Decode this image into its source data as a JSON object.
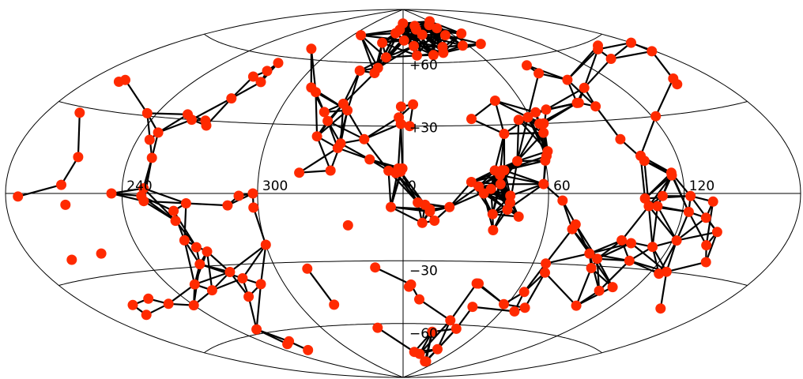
{
  "chart_data": {
    "type": "scatter",
    "projection": "aitoff-hammer",
    "title": "",
    "xlabel": "",
    "ylabel": "",
    "grid": true,
    "longitude_tick_labels": [
      {
        "value": 240,
        "text": "240"
      },
      {
        "value": 300,
        "text": "300"
      },
      {
        "value": 0,
        "text": "0"
      },
      {
        "value": 60,
        "text": "60"
      },
      {
        "value": 120,
        "text": "120"
      }
    ],
    "latitude_tick_labels": [
      {
        "value": 60,
        "text": "+60"
      },
      {
        "value": 30,
        "text": "+30"
      },
      {
        "value": -30,
        "text": "−30"
      },
      {
        "value": -60,
        "text": "−60"
      }
    ],
    "colors": {
      "marker": "#ff2a00",
      "line": "#000000",
      "grid": "#000000"
    },
    "points": [
      [
        -0.4,
        81.6
      ],
      [
        -5,
        78
      ],
      [
        -10,
        76
      ],
      [
        -21,
        70.6
      ],
      [
        -13,
        63
      ],
      [
        -16.8,
        57.6
      ],
      [
        -51,
        74
      ],
      [
        -78,
        65
      ],
      [
        -86,
        57
      ],
      [
        -86,
        53
      ],
      [
        -90,
        50
      ],
      [
        -82,
        48
      ],
      [
        -89,
        40
      ],
      [
        -100,
        30
      ],
      [
        -104,
        32
      ],
      [
        -112,
        24
      ],
      [
        -114,
        21
      ],
      [
        -109,
        14
      ],
      [
        -93,
        30
      ],
      [
        -91,
        28
      ],
      [
        -125,
        31
      ],
      [
        -160,
        41
      ],
      [
        -162,
        40
      ],
      [
        -161,
        28
      ],
      [
        -145,
        13
      ],
      [
        -150,
        3
      ],
      [
        -148,
        -4
      ],
      [
        -173,
        -1
      ],
      [
        -140,
        -22
      ],
      [
        -158,
        -23
      ],
      [
        -154,
        -41
      ],
      [
        -140,
        -40
      ],
      [
        -156,
        -45
      ],
      [
        -100,
        -40
      ],
      [
        -88,
        -24
      ],
      [
        -97,
        -11
      ],
      [
        -97,
        -7
      ],
      [
        -91,
        -4
      ],
      [
        -111,
        -1
      ],
      [
        -110,
        2
      ],
      [
        -96,
        -19
      ],
      [
        -92,
        -22
      ],
      [
        -95,
        -29
      ],
      [
        -83,
        -33
      ],
      [
        -79,
        -36
      ],
      [
        -84,
        -44
      ],
      [
        -106,
        -37
      ],
      [
        -106,
        -58
      ],
      [
        -100,
        -65
      ],
      [
        -101,
        -70
      ],
      [
        -106,
        -66
      ],
      [
        -133,
        -43
      ],
      [
        -120,
        -45
      ],
      [
        -125,
        0
      ],
      [
        -110,
        -3
      ],
      [
        -51,
        47
      ],
      [
        -35,
        32
      ],
      [
        -38,
        25
      ],
      [
        -73,
        -5
      ],
      [
        -62,
        -6
      ],
      [
        -62,
        0
      ],
      [
        -68,
        -1
      ],
      [
        -17,
        24
      ],
      [
        -27,
        22
      ],
      [
        -28,
        20
      ],
      [
        -18,
        55
      ],
      [
        -28,
        56
      ],
      [
        -47,
        45
      ],
      [
        -30,
        40
      ],
      [
        -38,
        36
      ],
      [
        -27,
        37
      ],
      [
        -2,
        34
      ],
      [
        -1,
        31
      ],
      [
        -2,
        11
      ],
      [
        -3,
        9
      ],
      [
        -6,
        10
      ],
      [
        -14,
        15
      ],
      [
        -30,
        10
      ],
      [
        -43,
        9
      ],
      [
        -5,
        -6
      ],
      [
        -23,
        -14
      ],
      [
        -60,
        -22
      ],
      [
        -45,
        -33
      ],
      [
        -72,
        -39
      ],
      [
        -40,
        -50
      ],
      [
        -13,
        -33
      ],
      [
        -19,
        -62
      ],
      [
        -1,
        9.6
      ],
      [
        -0.3,
        11
      ],
      [
        6,
        -4
      ],
      [
        8,
        -13
      ],
      [
        11,
        -7
      ],
      [
        13,
        -12
      ],
      [
        19,
        -6
      ],
      [
        11,
        -8
      ],
      [
        9,
        -5
      ],
      [
        4,
        -41
      ],
      [
        9,
        -48
      ],
      [
        3,
        -42
      ],
      [
        14,
        -75
      ],
      [
        32,
        -58
      ],
      [
        23,
        -64
      ],
      [
        40,
        -80
      ],
      [
        39,
        -73
      ],
      [
        42,
        -80
      ],
      [
        22,
        -76
      ],
      [
        37,
        -40
      ],
      [
        41,
        -51
      ],
      [
        40,
        -62
      ],
      [
        38,
        -40
      ],
      [
        68,
        -34
      ],
      [
        64,
        -43
      ],
      [
        58,
        -49
      ],
      [
        68,
        -52
      ],
      [
        72,
        -50
      ],
      [
        66,
        -30
      ],
      [
        38,
        -16
      ],
      [
        37,
        -9
      ],
      [
        48,
        -10
      ],
      [
        43,
        -7
      ],
      [
        33,
        0
      ],
      [
        36,
        2
      ],
      [
        31,
        3
      ],
      [
        40,
        4
      ],
      [
        44,
        -4
      ],
      [
        44,
        -1
      ],
      [
        40,
        8
      ],
      [
        41,
        10
      ],
      [
        45,
        26
      ],
      [
        32,
        33
      ],
      [
        54,
        32
      ],
      [
        47,
        41
      ],
      [
        59,
        33
      ],
      [
        63,
        30
      ],
      [
        64,
        35
      ],
      [
        63,
        26
      ],
      [
        62,
        18
      ],
      [
        61,
        16
      ],
      [
        60,
        14
      ],
      [
        48,
        14
      ],
      [
        42,
        10
      ],
      [
        38,
        10
      ],
      [
        28,
        5
      ],
      [
        58,
        4
      ],
      [
        66,
        -3
      ],
      [
        72,
        -15
      ],
      [
        73,
        -13
      ],
      [
        84,
        -25
      ],
      [
        96,
        -19
      ],
      [
        89,
        -31
      ],
      [
        89,
        -27
      ],
      [
        105,
        -27
      ],
      [
        108,
        -38
      ],
      [
        100,
        -47
      ],
      [
        103,
        -40
      ],
      [
        101,
        -20
      ],
      [
        110,
        -1
      ],
      [
        108,
        -5
      ],
      [
        115,
        8
      ],
      [
        102,
        -2
      ],
      [
        104,
        -5
      ],
      [
        123,
        -1
      ],
      [
        134,
        -3
      ],
      [
        132,
        -9
      ],
      [
        144,
        -25
      ],
      [
        123,
        -7
      ],
      [
        112,
        -21
      ],
      [
        150,
        -43
      ],
      [
        128,
        -30
      ],
      [
        125,
        -31
      ],
      [
        138,
        -19
      ],
      [
        140,
        -14
      ],
      [
        122,
        -18
      ],
      [
        36,
        68
      ],
      [
        33,
        65
      ],
      [
        24,
        64
      ],
      [
        24,
        75
      ],
      [
        10,
        69
      ],
      [
        11,
        64
      ],
      [
        1,
        72
      ],
      [
        20,
        78
      ],
      [
        21,
        80
      ],
      [
        48,
        80
      ],
      [
        53,
        78
      ],
      [
        61,
        82
      ],
      [
        51,
        74
      ],
      [
        55,
        68
      ],
      [
        72,
        74
      ],
      [
        73,
        68
      ],
      [
        83,
        56
      ],
      [
        84,
        52
      ],
      [
        89,
        38
      ],
      [
        96,
        36
      ],
      [
        96,
        48
      ],
      [
        100,
        44
      ],
      [
        88,
        38
      ],
      [
        97,
        22
      ],
      [
        103,
        15
      ],
      [
        104,
        13
      ],
      [
        115,
        7
      ],
      [
        122,
        30
      ],
      [
        157,
        42
      ],
      [
        154,
        40
      ],
      [
        143,
        53
      ],
      [
        149,
        57
      ],
      [
        155,
        58
      ],
      [
        180,
        55
      ],
      [
        178,
        51
      ],
      [
        65,
        30
      ],
      [
        70,
        36
      ],
      [
        5,
        40
      ],
      [
        -1,
        39
      ],
      [
        3,
        30
      ]
    ]
  }
}
